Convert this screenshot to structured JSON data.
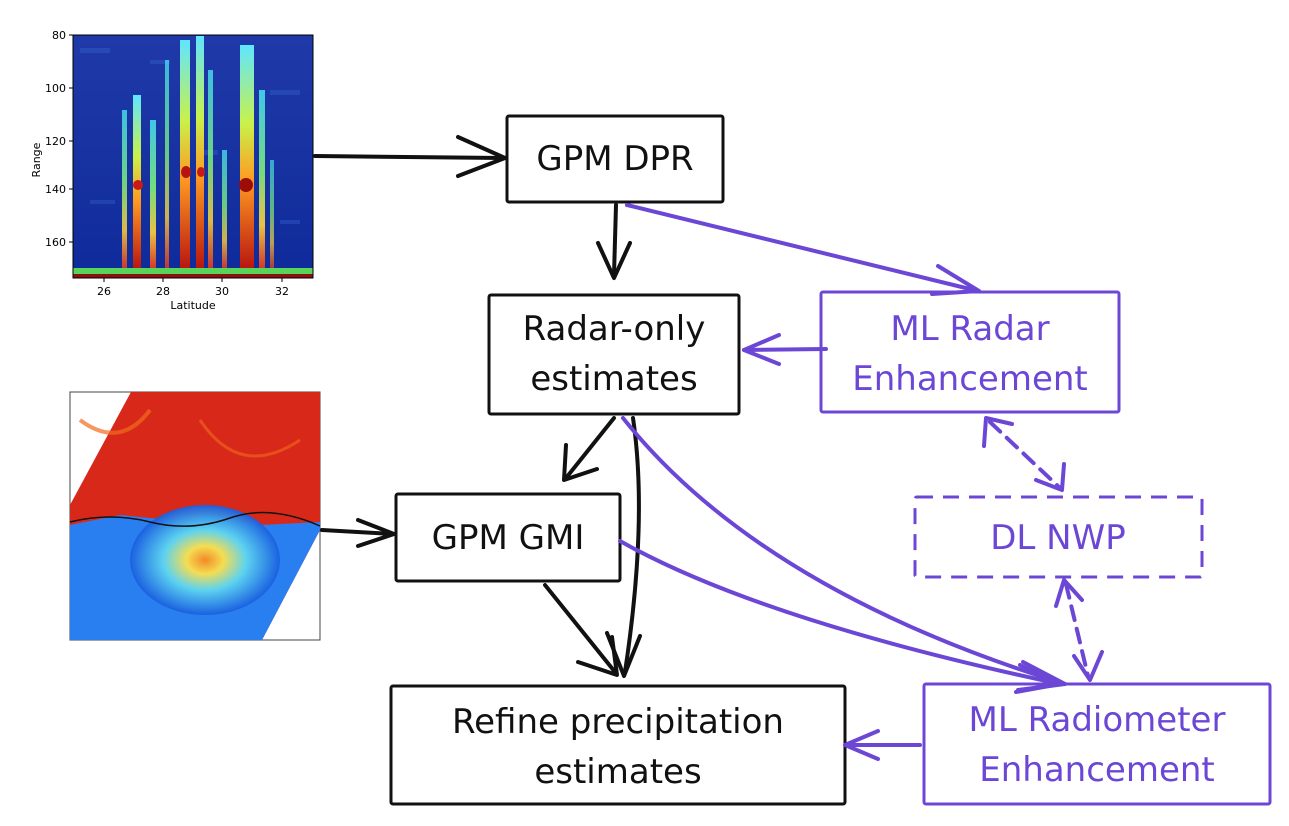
{
  "colors": {
    "black": "#111111",
    "purple": "#6c47d6"
  },
  "boxes": {
    "gpm_dpr": "GPM DPR",
    "radar_only_line1": "Radar-only",
    "radar_only_line2": "estimates",
    "ml_radar_line1": "ML Radar",
    "ml_radar_line2": "Enhancement",
    "dl_nwp": "DL NWP",
    "gpm_gmi": "GPM GMI",
    "refine_line1": "Refine precipitation",
    "refine_line2": "estimates",
    "ml_radiometer_line1": "ML Radiometer",
    "ml_radiometer_line2": "Enhancement"
  },
  "radar_plot": {
    "ylabel": "Range",
    "xlabel": "Latitude",
    "yticks": [
      "80",
      "100",
      "120",
      "140",
      "160"
    ],
    "xticks": [
      "26",
      "28",
      "30",
      "32"
    ]
  }
}
